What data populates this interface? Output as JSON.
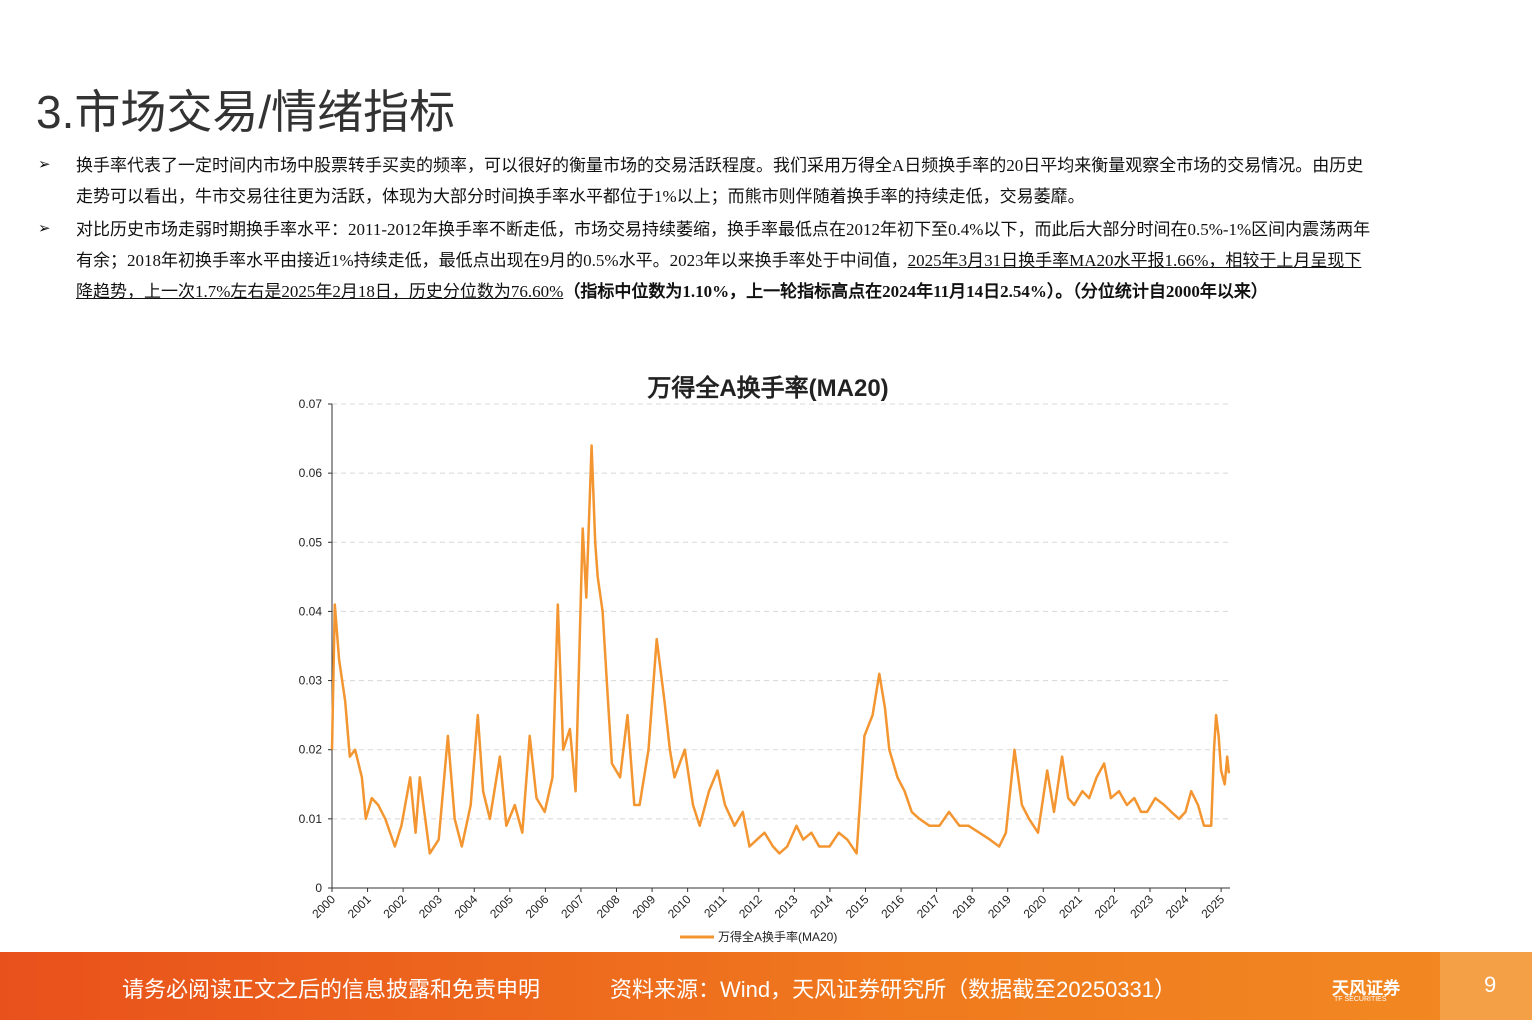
{
  "header": {
    "title": "3.市场交易/情绪指标"
  },
  "bullets": [
    {
      "text": "换手率代表了一定时间内市场中股票转手买卖的频率，可以很好的衡量市场的交易活跃程度。我们采用万得全A日频换手率的20日平均来衡量观察全市场的交易情况。由历史走势可以看出，牛市交易往往更为活跃，体现为大部分时间换手率水平都位于1%以上；而熊市则伴随着换手率的持续走低，交易萎靡。"
    },
    {
      "text": "对比历史市场走弱时期换手率水平：2011-2012年换手率不断走低，市场交易持续萎缩，换手率最低点在2012年初下至0.4%以下，而此后大部分时间在0.5%-1%区间内震荡两年有余；2018年初换手率水平由接近1%持续走低，最低点出现在9月的0.5%水平。2023年以来换手率处于中间值，",
      "underlined": "2025年3月31日换手率MA20水平报1.66%，相较于上月呈现下降趋势，上一次1.7%左右是2025年2月18日，历史分位数为76.60%",
      "bold": "（指标中位数为1.10%，上一轮指标高点在2024年11月14日2.54%）。（分位统计自2000年以来）"
    }
  ],
  "chart_data": {
    "type": "line",
    "title": "万得全A换手率(MA20)",
    "x": [
      2000.0,
      2000.08,
      2000.2,
      2000.37,
      2000.5,
      2000.65,
      2000.84,
      2000.95,
      2001.12,
      2001.3,
      2001.5,
      2001.77,
      2001.95,
      2002.2,
      2002.35,
      2002.47,
      2002.75,
      2003.0,
      2003.26,
      2003.45,
      2003.65,
      2003.9,
      2004.1,
      2004.25,
      2004.44,
      2004.72,
      2004.9,
      2005.14,
      2005.35,
      2005.56,
      2005.75,
      2005.98,
      2006.2,
      2006.35,
      2006.5,
      2006.69,
      2006.85,
      2007.05,
      2007.15,
      2007.3,
      2007.4,
      2007.47,
      2007.61,
      2007.75,
      2007.87,
      2008.1,
      2008.31,
      2008.5,
      2008.65,
      2008.9,
      2009.13,
      2009.35,
      2009.5,
      2009.63,
      2009.92,
      2010.15,
      2010.34,
      2010.6,
      2010.84,
      2011.05,
      2011.32,
      2011.55,
      2011.74,
      2011.95,
      2012.16,
      2012.4,
      2012.58,
      2012.8,
      2013.06,
      2013.25,
      2013.48,
      2013.7,
      2013.99,
      2014.25,
      2014.49,
      2014.75,
      2014.97,
      2015.2,
      2015.39,
      2015.55,
      2015.67,
      2015.9,
      2016.1,
      2016.3,
      2016.52,
      2016.8,
      2017.08,
      2017.35,
      2017.64,
      2017.9,
      2018.2,
      2018.5,
      2018.76,
      2018.95,
      2019.19,
      2019.4,
      2019.6,
      2019.85,
      2020.11,
      2020.3,
      2020.53,
      2020.7,
      2020.87,
      2021.1,
      2021.29,
      2021.5,
      2021.71,
      2021.9,
      2022.13,
      2022.35,
      2022.56,
      2022.75,
      2022.92,
      2023.15,
      2023.4,
      2023.6,
      2023.82,
      2024.0,
      2024.16,
      2024.35,
      2024.52,
      2024.72,
      2024.8,
      2024.86,
      2024.93,
      2025.0,
      2025.1,
      2025.17,
      2025.22
    ],
    "series": [
      {
        "name": "万得全A换手率(MA20)",
        "color": "#f39530",
        "values": [
          0.02,
          0.041,
          0.033,
          0.027,
          0.019,
          0.02,
          0.016,
          0.01,
          0.013,
          0.012,
          0.01,
          0.006,
          0.009,
          0.016,
          0.008,
          0.016,
          0.005,
          0.007,
          0.022,
          0.01,
          0.006,
          0.012,
          0.025,
          0.014,
          0.01,
          0.019,
          0.009,
          0.012,
          0.008,
          0.022,
          0.013,
          0.011,
          0.016,
          0.041,
          0.02,
          0.023,
          0.014,
          0.052,
          0.042,
          0.064,
          0.05,
          0.045,
          0.04,
          0.028,
          0.018,
          0.016,
          0.025,
          0.012,
          0.012,
          0.02,
          0.036,
          0.027,
          0.02,
          0.016,
          0.02,
          0.012,
          0.009,
          0.014,
          0.017,
          0.012,
          0.009,
          0.011,
          0.006,
          0.007,
          0.008,
          0.006,
          0.005,
          0.006,
          0.009,
          0.007,
          0.008,
          0.006,
          0.006,
          0.008,
          0.007,
          0.005,
          0.022,
          0.025,
          0.031,
          0.026,
          0.02,
          0.016,
          0.014,
          0.011,
          0.01,
          0.009,
          0.009,
          0.011,
          0.009,
          0.009,
          0.008,
          0.007,
          0.006,
          0.008,
          0.02,
          0.012,
          0.01,
          0.008,
          0.017,
          0.011,
          0.019,
          0.013,
          0.012,
          0.014,
          0.013,
          0.016,
          0.018,
          0.013,
          0.014,
          0.012,
          0.013,
          0.011,
          0.011,
          0.013,
          0.012,
          0.011,
          0.01,
          0.011,
          0.014,
          0.012,
          0.009,
          0.009,
          0.02,
          0.025,
          0.022,
          0.017,
          0.015,
          0.019,
          0.0166
        ]
      }
    ],
    "xlim": [
      2000,
      2025.25
    ],
    "ylim": [
      0,
      0.07
    ],
    "xticks": [
      2000,
      2001,
      2002,
      2003,
      2004,
      2005,
      2006,
      2007,
      2008,
      2009,
      2010,
      2011,
      2012,
      2013,
      2014,
      2015,
      2016,
      2017,
      2018,
      2019,
      2020,
      2021,
      2022,
      2023,
      2024,
      2025
    ],
    "yticks": [
      0,
      0.01,
      0.02,
      0.03,
      0.04,
      0.05,
      0.06,
      0.07
    ],
    "grid": true
  },
  "footer": {
    "disclaimer": "请务必阅读正文之后的信息披露和免责申明",
    "source": "资料来源：Wind，天风证券研究所（数据截至20250331）",
    "logo": "天风证券",
    "logo_sub": "TF SECURITIES",
    "page": "9"
  }
}
